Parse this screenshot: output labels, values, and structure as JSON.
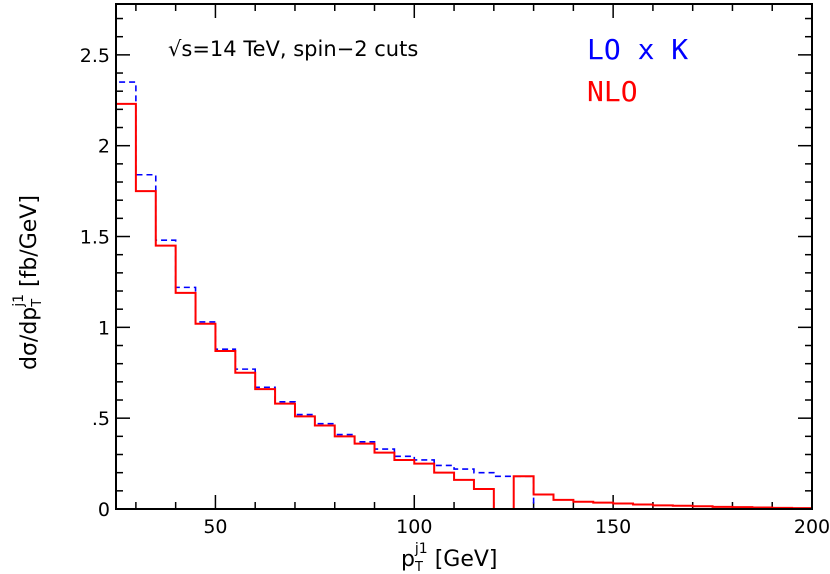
{
  "chart_data": {
    "type": "line",
    "step": true,
    "xlabel": {
      "main": "p",
      "sub": "T",
      "sup": "j1",
      "unit": " [GeV]"
    },
    "ylabel": {
      "pre": "dσ/dp",
      "sub": "T",
      "sup": "j1",
      "unit": " [fb/GeV]"
    },
    "xlim": [
      25,
      200
    ],
    "ylim": [
      0,
      2.78
    ],
    "xticks": [
      50,
      100,
      150,
      200
    ],
    "xtick_labels": [
      "50",
      "100",
      "150",
      "200"
    ],
    "yticks": [
      0,
      0.5,
      1,
      1.5,
      2,
      2.5
    ],
    "ytick_labels": [
      "0",
      ".5",
      "1",
      "1.5",
      "2",
      "2.5"
    ],
    "annotation": "√s=14 TeV, spin−2 cuts",
    "legend_position": "top-right",
    "bin_edges": [
      25,
      30,
      35,
      40,
      45,
      50,
      55,
      60,
      65,
      70,
      75,
      80,
      85,
      90,
      95,
      100,
      105,
      110,
      115,
      120,
      125,
      130,
      135,
      140,
      145,
      150,
      155,
      160,
      165,
      170,
      175,
      180,
      185,
      190,
      195,
      200
    ],
    "series": [
      {
        "name": "LO x K",
        "color": "#0000ff",
        "dash": true,
        "values": [
          2.35,
          1.84,
          1.48,
          1.22,
          1.03,
          0.88,
          0.77,
          0.67,
          0.59,
          0.52,
          0.47,
          0.41,
          0.37,
          0.33,
          0.29,
          0.27,
          0.24,
          0.22,
          0.2,
          0.18,
          0.18,
          0,
          0,
          0,
          0,
          0,
          0,
          0,
          0,
          0,
          0,
          0,
          0,
          0,
          0
        ]
      },
      {
        "name": "NLO",
        "color": "#ff0000",
        "dash": false,
        "values": [
          2.23,
          1.75,
          1.45,
          1.19,
          1.02,
          0.87,
          0.75,
          0.66,
          0.58,
          0.51,
          0.46,
          0.4,
          0.36,
          0.31,
          0.27,
          0.25,
          0.2,
          0.16,
          0.11,
          0,
          0.18,
          0.08,
          0.05,
          0.04,
          0.035,
          0.03,
          0.025,
          0.02,
          0.018,
          0.015,
          0.012,
          0.01,
          0.008,
          0.006,
          0.005
        ]
      }
    ]
  }
}
